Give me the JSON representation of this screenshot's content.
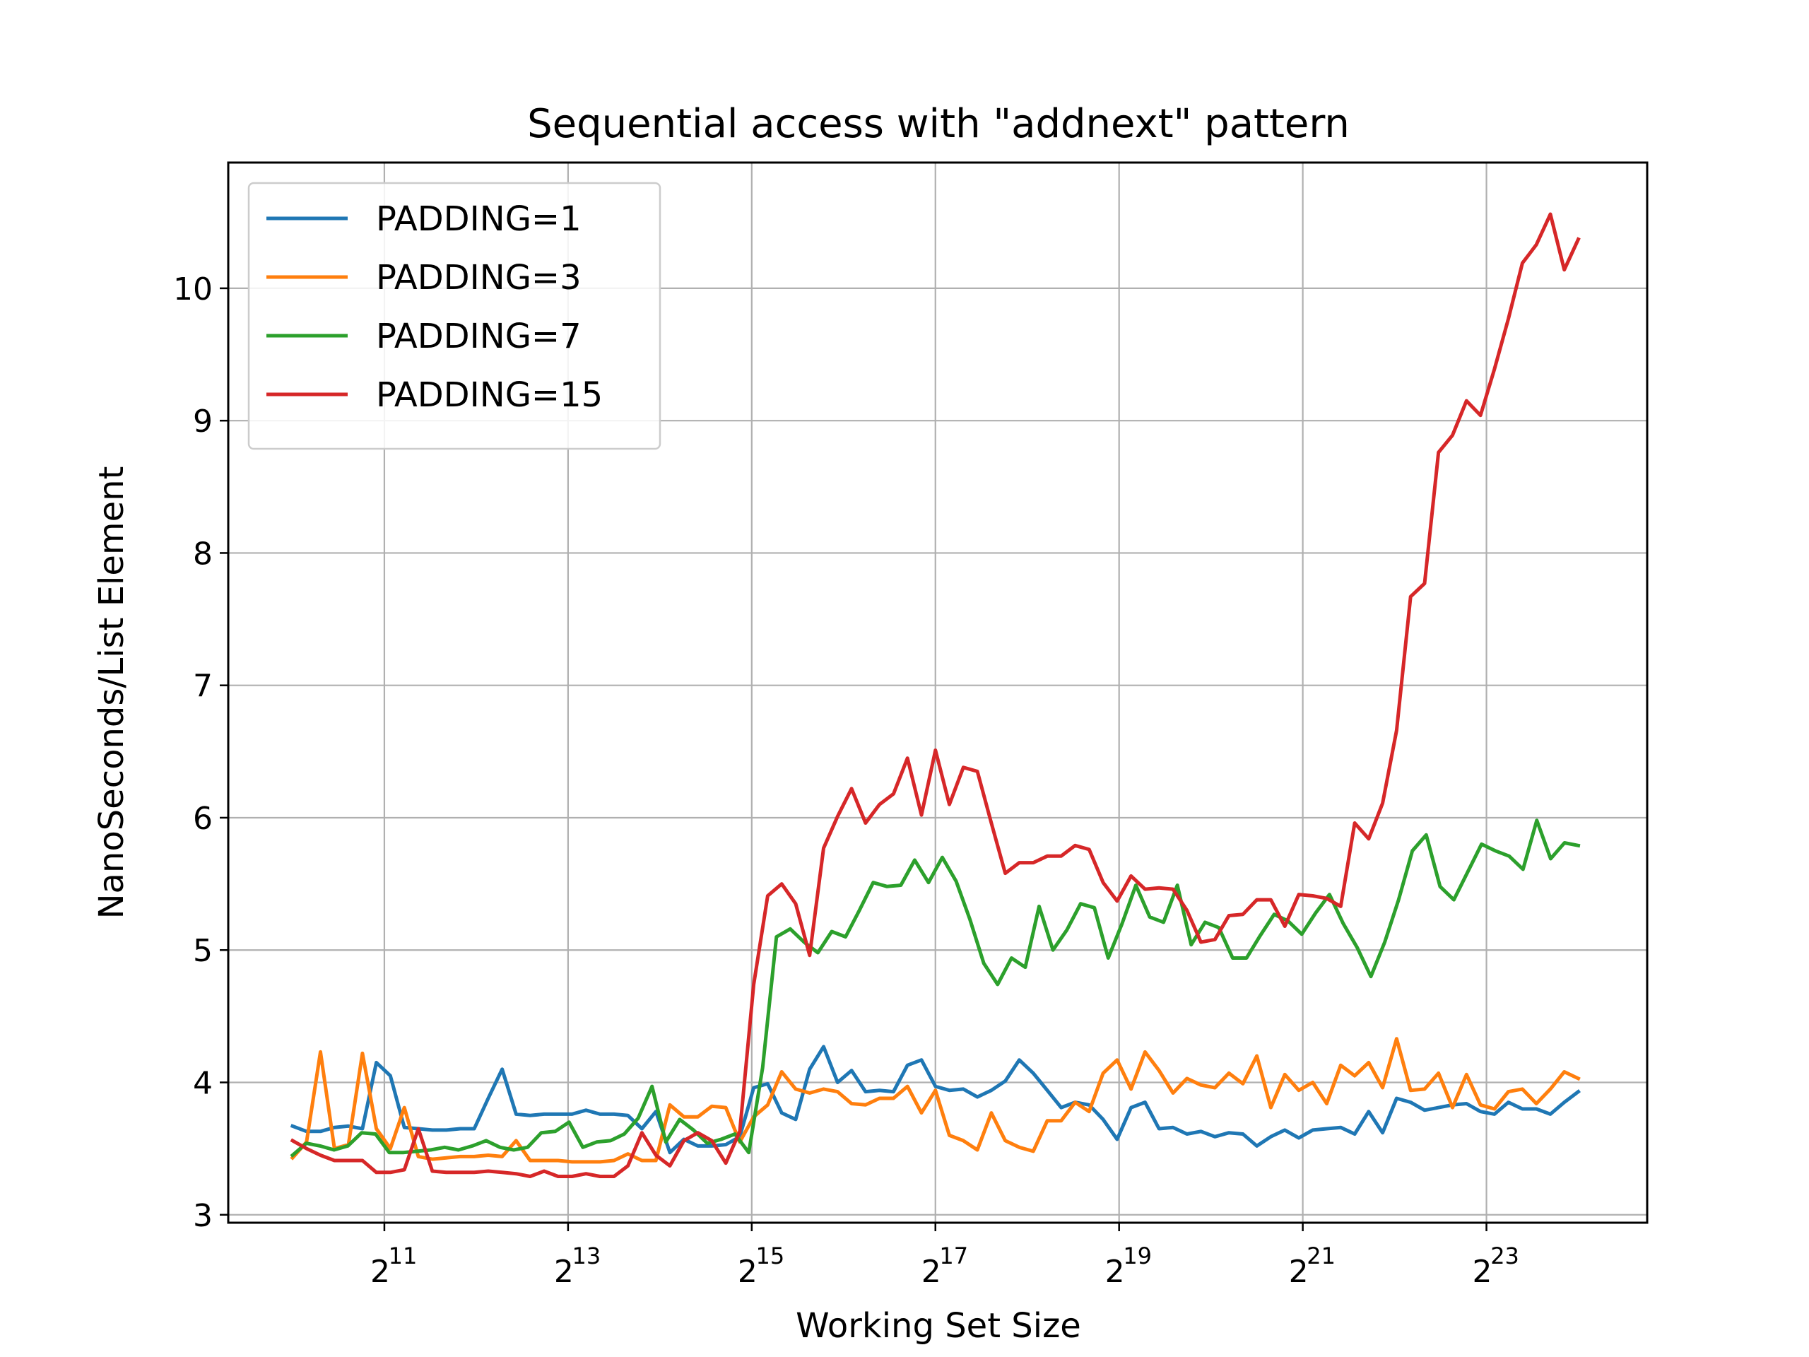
{
  "chart_data": {
    "type": "line",
    "title": "Sequential access with \"addnext\" pattern",
    "xlabel": "Working Set Size",
    "ylabel": "NanoSeconds/List Element",
    "x_scale": "log2",
    "x_range": [
      10.0,
      24.0
    ],
    "xlim": [
      9.3,
      24.75
    ],
    "ylim": [
      2.94,
      10.95
    ],
    "x_ticks": [
      {
        "exp": "11",
        "value": 2048
      },
      {
        "exp": "13",
        "value": 8192
      },
      {
        "exp": "15",
        "value": 32768
      },
      {
        "exp": "17",
        "value": 131072
      },
      {
        "exp": "19",
        "value": 524288
      },
      {
        "exp": "21",
        "value": 2097152
      },
      {
        "exp": "23",
        "value": 8388608
      }
    ],
    "x_tick_base": "2",
    "y_ticks": [
      "3",
      "4",
      "5",
      "6",
      "7",
      "8",
      "9",
      "10"
    ],
    "grid": true,
    "legend_position": "upper-left",
    "series": [
      {
        "name": "PADDING=1",
        "color": "#1f77b4",
        "values": [
          3.67,
          3.63,
          3.63,
          3.66,
          3.67,
          3.65,
          4.15,
          4.05,
          3.66,
          3.65,
          3.64,
          3.64,
          3.65,
          3.65,
          3.88,
          4.1,
          3.76,
          3.75,
          3.76,
          3.76,
          3.76,
          3.79,
          3.76,
          3.76,
          3.75,
          3.65,
          3.78,
          3.47,
          3.57,
          3.52,
          3.52,
          3.53,
          3.59,
          3.96,
          3.99,
          3.77,
          3.72,
          4.1,
          4.27,
          4.0,
          4.09,
          3.93,
          3.94,
          3.93,
          4.13,
          4.17,
          3.97,
          3.94,
          3.95,
          3.89,
          3.94,
          4.01,
          4.17,
          4.07,
          3.94,
          3.81,
          3.85,
          3.83,
          3.72,
          3.57,
          3.81,
          3.85,
          3.65,
          3.66,
          3.61,
          3.63,
          3.59,
          3.62,
          3.61,
          3.52,
          3.59,
          3.64,
          3.58,
          3.64,
          3.65,
          3.66,
          3.61,
          3.78,
          3.62,
          3.88,
          3.85,
          3.79,
          3.81,
          3.83,
          3.84,
          3.78,
          3.76,
          3.85,
          3.8,
          3.8,
          3.76,
          3.85,
          3.93
        ]
      },
      {
        "name": "PADDING=3",
        "color": "#ff7f0e",
        "values": [
          3.43,
          3.55,
          4.23,
          3.5,
          3.53,
          4.22,
          3.65,
          3.5,
          3.81,
          3.44,
          3.42,
          3.43,
          3.44,
          3.44,
          3.45,
          3.44,
          3.56,
          3.41,
          3.41,
          3.41,
          3.4,
          3.4,
          3.4,
          3.41,
          3.46,
          3.41,
          3.41,
          3.83,
          3.74,
          3.74,
          3.82,
          3.81,
          3.55,
          3.74,
          3.83,
          4.08,
          3.95,
          3.92,
          3.95,
          3.93,
          3.84,
          3.83,
          3.88,
          3.88,
          3.97,
          3.77,
          3.94,
          3.6,
          3.56,
          3.49,
          3.77,
          3.56,
          3.51,
          3.48,
          3.71,
          3.71,
          3.85,
          3.78,
          4.07,
          4.17,
          3.95,
          4.23,
          4.09,
          3.92,
          4.03,
          3.98,
          3.96,
          4.07,
          3.99,
          4.2,
          3.81,
          4.06,
          3.94,
          4.0,
          3.84,
          4.13,
          4.05,
          4.15,
          3.96,
          4.33,
          3.94,
          3.95,
          4.07,
          3.81,
          4.06,
          3.83,
          3.8,
          3.93,
          3.95,
          3.84,
          3.95,
          4.08,
          4.03
        ]
      },
      {
        "name": "PADDING=7",
        "color": "#2ca02c",
        "values": [
          3.45,
          3.54,
          3.52,
          3.49,
          3.52,
          3.62,
          3.61,
          3.47,
          3.47,
          3.48,
          3.49,
          3.51,
          3.49,
          3.52,
          3.56,
          3.51,
          3.49,
          3.51,
          3.62,
          3.63,
          3.7,
          3.51,
          3.55,
          3.56,
          3.61,
          3.73,
          3.97,
          3.55,
          3.72,
          3.64,
          3.54,
          3.57,
          3.61,
          3.47,
          4.11,
          5.1,
          5.16,
          5.06,
          4.98,
          5.14,
          5.1,
          5.3,
          5.51,
          5.48,
          5.49,
          5.68,
          5.51,
          5.7,
          5.52,
          5.23,
          4.9,
          4.74,
          4.94,
          4.87,
          5.33,
          5.0,
          5.15,
          5.35,
          5.32,
          4.94,
          5.2,
          5.49,
          5.25,
          5.21,
          5.49,
          5.04,
          5.21,
          5.17,
          4.94,
          4.94,
          5.11,
          5.27,
          5.22,
          5.12,
          5.28,
          5.42,
          5.2,
          5.02,
          4.8,
          5.06,
          5.38,
          5.75,
          5.87,
          5.48,
          5.38,
          5.59,
          5.8,
          5.75,
          5.71,
          5.61,
          5.98,
          5.69,
          5.81,
          5.79
        ]
      },
      {
        "name": "PADDING=15",
        "color": "#d62728",
        "values": [
          3.56,
          3.5,
          3.45,
          3.41,
          3.41,
          3.41,
          3.32,
          3.32,
          3.34,
          3.65,
          3.33,
          3.32,
          3.32,
          3.32,
          3.33,
          3.32,
          3.31,
          3.29,
          3.33,
          3.29,
          3.29,
          3.31,
          3.29,
          3.29,
          3.37,
          3.62,
          3.45,
          3.37,
          3.56,
          3.62,
          3.56,
          3.39,
          3.63,
          4.74,
          5.41,
          5.5,
          5.35,
          4.96,
          5.77,
          6.01,
          6.22,
          5.96,
          6.1,
          6.18,
          6.45,
          6.02,
          6.51,
          6.1,
          6.38,
          6.35,
          5.96,
          5.58,
          5.66,
          5.66,
          5.71,
          5.71,
          5.79,
          5.76,
          5.51,
          5.37,
          5.56,
          5.46,
          5.47,
          5.46,
          5.3,
          5.06,
          5.08,
          5.26,
          5.27,
          5.38,
          5.38,
          5.18,
          5.42,
          5.41,
          5.39,
          5.33,
          5.96,
          5.84,
          6.11,
          6.66,
          7.67,
          7.77,
          8.76,
          8.89,
          9.15,
          9.04,
          9.39,
          9.77,
          10.19,
          10.33,
          10.56,
          10.14,
          10.37
        ]
      }
    ]
  }
}
